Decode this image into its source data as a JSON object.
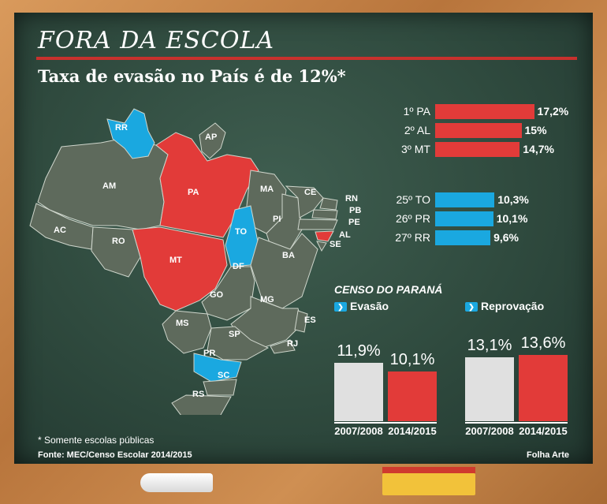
{
  "title": "FORA DA ESCOLA",
  "subtitle": "Taxa de evasão no País é de 12%*",
  "colors": {
    "red": "#e23b39",
    "blue": "#1aa8e0",
    "grey": "#5e6a5c",
    "white_bar": "#e0e0e0"
  },
  "chart_data": [
    {
      "type": "bar",
      "title": "",
      "categories": [
        "1º PA",
        "2º AL",
        "3º MT",
        "25º TO",
        "26º PR",
        "27º RR"
      ],
      "values": [
        17.2,
        15,
        14.7,
        10.3,
        10.1,
        9.6
      ],
      "value_labels": [
        "17,2%",
        "15%",
        "14,7%",
        "10,3%",
        "10,1%",
        "9,6%"
      ],
      "bar_colors": [
        "#e23b39",
        "#e23b39",
        "#e23b39",
        "#1aa8e0",
        "#1aa8e0",
        "#1aa8e0"
      ]
    },
    {
      "type": "bar",
      "title": "CENSO DO PARANÁ",
      "categories": [
        "2007/2008",
        "2014/2015"
      ],
      "series": [
        {
          "name": "Evasão",
          "values": [
            11.9,
            10.1
          ],
          "labels": [
            "11,9%",
            "10,1%"
          ]
        },
        {
          "name": "Reprovação",
          "values": [
            13.1,
            13.6
          ],
          "labels": [
            "13,1%",
            "13,6%"
          ]
        }
      ],
      "bar_colors": [
        "#e0e0e0",
        "#e23b39"
      ],
      "legend": "top"
    }
  ],
  "map": {
    "states": [
      "RR",
      "AP",
      "AM",
      "PA",
      "MA",
      "CE",
      "RN",
      "PB",
      "PE",
      "AL",
      "SE",
      "PI",
      "AC",
      "RO",
      "TO",
      "BA",
      "MT",
      "DF",
      "GO",
      "MG",
      "ES",
      "MS",
      "SP",
      "RJ",
      "PR",
      "SC",
      "RS"
    ]
  },
  "legend_icon_glyph": "❯",
  "footnote": "* Somente escolas públicas",
  "source": "Fonte: MEC/Censo Escolar 2014/2015",
  "credit": "Folha Arte"
}
